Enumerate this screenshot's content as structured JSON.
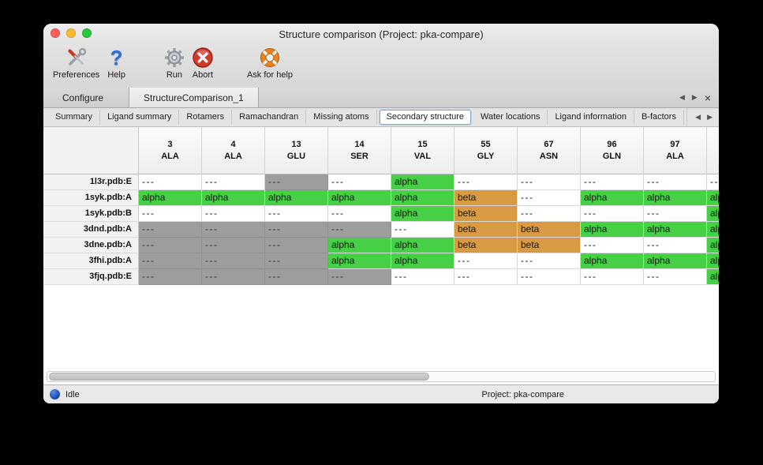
{
  "titlebar": {
    "title": "Structure comparison (Project: pka-compare)"
  },
  "toolbar": {
    "preferences": "Preferences",
    "help": "Help",
    "run": "Run",
    "abort": "Abort",
    "ask_for_help": "Ask for help"
  },
  "icons": {
    "question": "?",
    "prev_arrow": "◀",
    "next_arrow": "▶",
    "close": "×"
  },
  "tabs": {
    "items": [
      "Configure",
      "StructureComparison_1"
    ],
    "active": "StructureComparison_1"
  },
  "subtabs": {
    "items": [
      "Summary",
      "Ligand summary",
      "Rotamers",
      "Ramachandran",
      "Missing atoms",
      "Secondary structure",
      "Water locations",
      "Ligand information",
      "B-factors"
    ],
    "active": "Secondary structure"
  },
  "table": {
    "columns": [
      {
        "num": "3",
        "res": "ALA"
      },
      {
        "num": "4",
        "res": "ALA"
      },
      {
        "num": "13",
        "res": "GLU"
      },
      {
        "num": "14",
        "res": "SER"
      },
      {
        "num": "15",
        "res": "VAL"
      },
      {
        "num": "55",
        "res": "GLY"
      },
      {
        "num": "67",
        "res": "ASN"
      },
      {
        "num": "96",
        "res": "GLN"
      },
      {
        "num": "97",
        "res": "ALA"
      },
      {
        "num": "",
        "res": ""
      }
    ],
    "rows": [
      {
        "label": "1l3r.pdb:E",
        "cells": [
          {
            "text": "---",
            "style": "blank"
          },
          {
            "text": "---",
            "style": "blank"
          },
          {
            "text": "---",
            "style": "gray"
          },
          {
            "text": "---",
            "style": "blank"
          },
          {
            "text": "alpha",
            "style": "alpha"
          },
          {
            "text": "---",
            "style": "blank"
          },
          {
            "text": "---",
            "style": "blank"
          },
          {
            "text": "---",
            "style": "blank"
          },
          {
            "text": "---",
            "style": "blank"
          },
          {
            "text": "---",
            "style": "blank"
          }
        ]
      },
      {
        "label": "1syk.pdb:A",
        "cells": [
          {
            "text": "alpha",
            "style": "alpha"
          },
          {
            "text": "alpha",
            "style": "alpha"
          },
          {
            "text": "alpha",
            "style": "alpha"
          },
          {
            "text": "alpha",
            "style": "alpha"
          },
          {
            "text": "alpha",
            "style": "alpha"
          },
          {
            "text": "beta",
            "style": "beta"
          },
          {
            "text": "---",
            "style": "blank"
          },
          {
            "text": "alpha",
            "style": "alpha"
          },
          {
            "text": "alpha",
            "style": "alpha"
          },
          {
            "text": "alpha",
            "style": "alpha"
          }
        ]
      },
      {
        "label": "1syk.pdb:B",
        "cells": [
          {
            "text": "---",
            "style": "blank"
          },
          {
            "text": "---",
            "style": "blank"
          },
          {
            "text": "---",
            "style": "blank"
          },
          {
            "text": "---",
            "style": "blank"
          },
          {
            "text": "alpha",
            "style": "alpha"
          },
          {
            "text": "beta",
            "style": "beta"
          },
          {
            "text": "---",
            "style": "blank"
          },
          {
            "text": "---",
            "style": "blank"
          },
          {
            "text": "---",
            "style": "blank"
          },
          {
            "text": "alpha",
            "style": "alpha"
          }
        ]
      },
      {
        "label": "3dnd.pdb:A",
        "cells": [
          {
            "text": "---",
            "style": "gray"
          },
          {
            "text": "---",
            "style": "gray"
          },
          {
            "text": "---",
            "style": "gray"
          },
          {
            "text": "---",
            "style": "gray"
          },
          {
            "text": "---",
            "style": "blank"
          },
          {
            "text": "beta",
            "style": "beta"
          },
          {
            "text": "beta",
            "style": "beta"
          },
          {
            "text": "alpha",
            "style": "alpha"
          },
          {
            "text": "alpha",
            "style": "alpha"
          },
          {
            "text": "alpha",
            "style": "alpha"
          }
        ]
      },
      {
        "label": "3dne.pdb:A",
        "cells": [
          {
            "text": "---",
            "style": "gray"
          },
          {
            "text": "---",
            "style": "gray"
          },
          {
            "text": "---",
            "style": "gray"
          },
          {
            "text": "alpha",
            "style": "alpha"
          },
          {
            "text": "alpha",
            "style": "alpha"
          },
          {
            "text": "beta",
            "style": "beta"
          },
          {
            "text": "beta",
            "style": "beta"
          },
          {
            "text": "---",
            "style": "blank"
          },
          {
            "text": "---",
            "style": "blank"
          },
          {
            "text": "alpha",
            "style": "alpha"
          }
        ]
      },
      {
        "label": "3fhi.pdb:A",
        "cells": [
          {
            "text": "---",
            "style": "gray"
          },
          {
            "text": "---",
            "style": "gray"
          },
          {
            "text": "---",
            "style": "gray"
          },
          {
            "text": "alpha",
            "style": "alpha"
          },
          {
            "text": "alpha",
            "style": "alpha"
          },
          {
            "text": "---",
            "style": "blank"
          },
          {
            "text": "---",
            "style": "blank"
          },
          {
            "text": "alpha",
            "style": "alpha"
          },
          {
            "text": "alpha",
            "style": "alpha"
          },
          {
            "text": "alpha",
            "style": "alpha"
          }
        ]
      },
      {
        "label": "3fjq.pdb:E",
        "cells": [
          {
            "text": "---",
            "style": "gray"
          },
          {
            "text": "---",
            "style": "gray"
          },
          {
            "text": "---",
            "style": "gray"
          },
          {
            "text": "---",
            "style": "gray"
          },
          {
            "text": "---",
            "style": "blank"
          },
          {
            "text": "---",
            "style": "blank"
          },
          {
            "text": "---",
            "style": "blank"
          },
          {
            "text": "---",
            "style": "blank"
          },
          {
            "text": "---",
            "style": "blank"
          },
          {
            "text": "alpha",
            "style": "alpha"
          }
        ]
      }
    ]
  },
  "statusbar": {
    "status": "Idle",
    "project": "Project: pka-compare"
  },
  "colors": {
    "alpha_green": "#45d045",
    "beta_orange": "#d89b44",
    "missing_gray": "#9d9d9d",
    "help_blue": "#2e6fd0",
    "abort_red": "#d23a2a",
    "lifebuoy_orange": "#e8821c"
  }
}
